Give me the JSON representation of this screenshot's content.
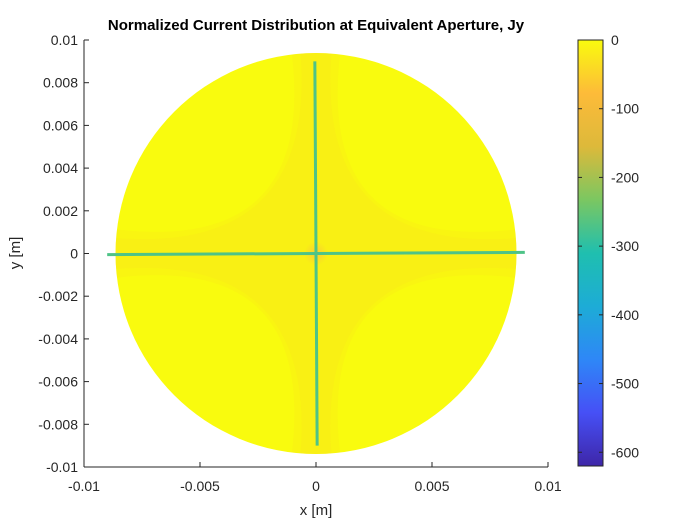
{
  "chart_data": {
    "type": "heatmap",
    "title": "Normalized Current Distribution at Equivalent Aperture, Jy",
    "xlabel": "x [m]",
    "ylabel": "y [m]",
    "xlim": [
      -0.01,
      0.01
    ],
    "ylim": [
      -0.01,
      0.01
    ],
    "xticks": [
      -0.01,
      -0.005,
      0,
      0.005,
      0.01
    ],
    "xtick_labels": [
      "-0.01",
      "-0.005",
      "0",
      "0.005",
      "0.01"
    ],
    "yticks": [
      0.01,
      0.008,
      0.006,
      0.004,
      0.002,
      0,
      -0.002,
      -0.004,
      -0.006,
      -0.008,
      -0.01
    ],
    "ytick_labels": [
      "0.01",
      "0.008",
      "0.006",
      "0.004",
      "0.002",
      "0",
      "-0.002",
      "-0.004",
      "-0.006",
      "-0.008",
      "-0.01"
    ],
    "aperture_radius": 0.009,
    "colorbar": {
      "colormap": "parula",
      "clim": [
        -620,
        0
      ],
      "ticks": [
        0,
        -100,
        -200,
        -300,
        -400,
        -500,
        -600
      ],
      "tick_labels": [
        "0",
        "-100",
        "-200",
        "-300",
        "-400",
        "-500",
        "-600"
      ]
    },
    "features": {
      "background_value": 0,
      "center_value": -60,
      "cross_line_value": -270,
      "vertical_line": {
        "x_top": -5e-05,
        "x_bottom": 5e-05,
        "y_range": [
          -0.009,
          0.009
        ]
      },
      "horizontal_line": {
        "x_range": [
          -0.009,
          0.009
        ],
        "y_left": -5e-05,
        "y_right": 5e-05
      }
    },
    "grid": false,
    "legend": "none"
  },
  "colors": {
    "parula_stops": [
      "#3e26a8",
      "#4650f6",
      "#2e87f7",
      "#1dacd6",
      "#1fbfaf",
      "#7bc761",
      "#ddb93a",
      "#fdbb39",
      "#f9fb0e"
    ],
    "line_color": "#23b8b3",
    "axis_color": "#262626"
  }
}
